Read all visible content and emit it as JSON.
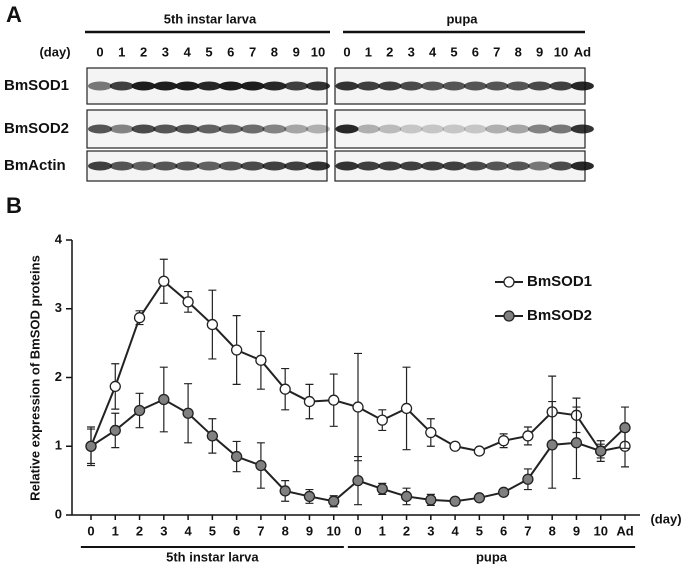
{
  "panel_a": {
    "label": "A",
    "day_label": "(day)",
    "groups": [
      "5th instar larva",
      "pupa"
    ],
    "larva_days": [
      "0",
      "1",
      "2",
      "3",
      "4",
      "5",
      "6",
      "7",
      "8",
      "9",
      "10"
    ],
    "pupa_days": [
      "0",
      "1",
      "2",
      "3",
      "4",
      "5",
      "6",
      "7",
      "8",
      "9",
      "10",
      "Ad"
    ],
    "rows": [
      "BmSOD1",
      "BmSOD2",
      "BmActin"
    ]
  },
  "chart_data": {
    "type": "line",
    "panel_label": "B",
    "ylabel": "Relative expression of BmSOD proteins",
    "x_label": "(day)",
    "group_labels": [
      "5th instar larva",
      "pupa"
    ],
    "categories": [
      "0",
      "1",
      "2",
      "3",
      "4",
      "5",
      "6",
      "7",
      "8",
      "9",
      "10",
      "0",
      "1",
      "2",
      "3",
      "4",
      "5",
      "6",
      "7",
      "8",
      "9",
      "10",
      "Ad"
    ],
    "ylim": [
      0,
      4
    ],
    "yticks": [
      0,
      1,
      2,
      3,
      4
    ],
    "legend": "upper right",
    "series": [
      {
        "name": "BmSOD1",
        "color": "#ffffff",
        "values": [
          1.0,
          1.87,
          2.87,
          3.4,
          3.1,
          2.77,
          2.4,
          2.25,
          1.83,
          1.65,
          1.67,
          1.57,
          1.38,
          1.55,
          1.2,
          1.0,
          0.93,
          1.08,
          1.15,
          1.5,
          1.45,
          0.93,
          1.0
        ],
        "errors": [
          0.28,
          0.33,
          0.1,
          0.32,
          0.15,
          0.5,
          0.5,
          0.42,
          0.3,
          0.25,
          0.38,
          0.78,
          0.15,
          0.6,
          0.2,
          0.03,
          0.03,
          0.1,
          0.13,
          0.52,
          0.25,
          0.1,
          0.3
        ]
      },
      {
        "name": "BmSOD2",
        "color": "#808080",
        "values": [
          1.0,
          1.23,
          1.52,
          1.68,
          1.48,
          1.15,
          0.85,
          0.72,
          0.35,
          0.27,
          0.2,
          0.5,
          0.38,
          0.27,
          0.22,
          0.2,
          0.25,
          0.33,
          0.52,
          1.02,
          1.05,
          0.93,
          1.27
        ],
        "errors": [
          0.25,
          0.25,
          0.25,
          0.47,
          0.43,
          0.25,
          0.22,
          0.33,
          0.15,
          0.1,
          0.08,
          0.35,
          0.08,
          0.12,
          0.08,
          0.05,
          0.05,
          0.05,
          0.15,
          0.63,
          0.52,
          0.15,
          0.3
        ]
      }
    ]
  }
}
